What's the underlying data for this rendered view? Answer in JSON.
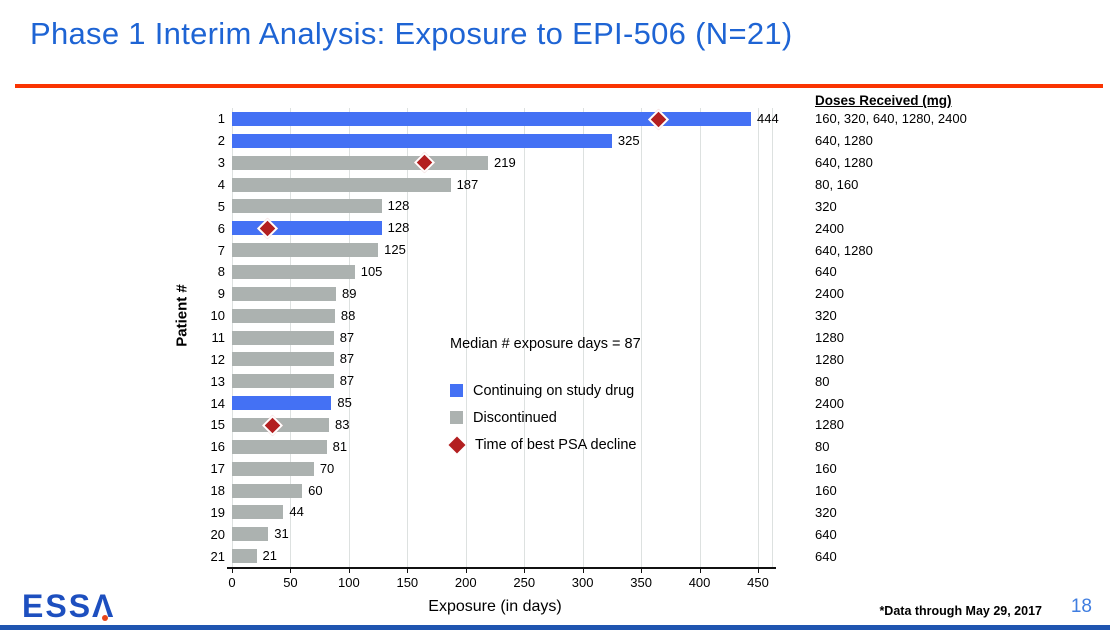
{
  "slide": {
    "title": "Phase 1 Interim Analysis: Exposure to EPI-506 (N=21)",
    "footnote": "*Data through May 29, 2017",
    "page_number": "18",
    "logo_text": "ESS",
    "logo_letter": "Λ"
  },
  "colors": {
    "title_blue": "#1E64D4",
    "rule_red": "#FA3402",
    "bar_blue": "#4471F4",
    "bar_gray": "#ACB2B0",
    "diamond_red": "#B31F20",
    "gridline": "#DDE1E0",
    "page_blue": "#3F7DE0",
    "logo_blue": "#1D4FBF",
    "logo_dot": "#E8461B",
    "footer_bar": "#1F55B0"
  },
  "chart_data": {
    "type": "bar",
    "orientation": "horizontal",
    "xlabel": "Exposure (in days)",
    "ylabel": "Patient #",
    "xlim": [
      0,
      450
    ],
    "xticks": [
      0,
      50,
      100,
      150,
      200,
      250,
      300,
      350,
      400,
      450
    ],
    "grid": "vertical",
    "annotation": "Median # exposure days = 87",
    "doses_header": "Doses Received (mg)",
    "legend": [
      {
        "label": "Continuing on study drug",
        "swatch": "square",
        "color_key": "bar_blue"
      },
      {
        "label": "Discontinued",
        "swatch": "square",
        "color_key": "bar_gray"
      },
      {
        "label": "Time of best PSA decline",
        "swatch": "diamond",
        "color_key": "diamond_red"
      }
    ],
    "patients": [
      {
        "id": 1,
        "days": 444,
        "status": "continuing",
        "psa_decline_day": 365,
        "doses": "160, 320, 640, 1280, 2400"
      },
      {
        "id": 2,
        "days": 325,
        "status": "continuing",
        "psa_decline_day": null,
        "doses": "640, 1280"
      },
      {
        "id": 3,
        "days": 219,
        "status": "discontinued",
        "psa_decline_day": 165,
        "doses": "640, 1280"
      },
      {
        "id": 4,
        "days": 187,
        "status": "discontinued",
        "psa_decline_day": null,
        "doses": "80, 160"
      },
      {
        "id": 5,
        "days": 128,
        "status": "discontinued",
        "psa_decline_day": null,
        "doses": "320"
      },
      {
        "id": 6,
        "days": 128,
        "status": "continuing",
        "psa_decline_day": 30,
        "doses": "2400"
      },
      {
        "id": 7,
        "days": 125,
        "status": "discontinued",
        "psa_decline_day": null,
        "doses": "640, 1280"
      },
      {
        "id": 8,
        "days": 105,
        "status": "discontinued",
        "psa_decline_day": null,
        "doses": "640"
      },
      {
        "id": 9,
        "days": 89,
        "status": "discontinued",
        "psa_decline_day": null,
        "doses": "2400"
      },
      {
        "id": 10,
        "days": 88,
        "status": "discontinued",
        "psa_decline_day": null,
        "doses": "320"
      },
      {
        "id": 11,
        "days": 87,
        "status": "discontinued",
        "psa_decline_day": null,
        "doses": "1280"
      },
      {
        "id": 12,
        "days": 87,
        "status": "discontinued",
        "psa_decline_day": null,
        "doses": "1280"
      },
      {
        "id": 13,
        "days": 87,
        "status": "discontinued",
        "psa_decline_day": null,
        "doses": "80"
      },
      {
        "id": 14,
        "days": 85,
        "status": "continuing",
        "psa_decline_day": null,
        "doses": "2400"
      },
      {
        "id": 15,
        "days": 83,
        "status": "discontinued",
        "psa_decline_day": 35,
        "doses": "1280"
      },
      {
        "id": 16,
        "days": 81,
        "status": "discontinued",
        "psa_decline_day": null,
        "doses": "80"
      },
      {
        "id": 17,
        "days": 70,
        "status": "discontinued",
        "psa_decline_day": null,
        "doses": "160"
      },
      {
        "id": 18,
        "days": 60,
        "status": "discontinued",
        "psa_decline_day": null,
        "doses": "160"
      },
      {
        "id": 19,
        "days": 44,
        "status": "discontinued",
        "psa_decline_day": null,
        "doses": "320"
      },
      {
        "id": 20,
        "days": 31,
        "status": "discontinued",
        "psa_decline_day": null,
        "doses": "640"
      },
      {
        "id": 21,
        "days": 21,
        "status": "discontinued",
        "psa_decline_day": null,
        "doses": "640"
      }
    ]
  }
}
